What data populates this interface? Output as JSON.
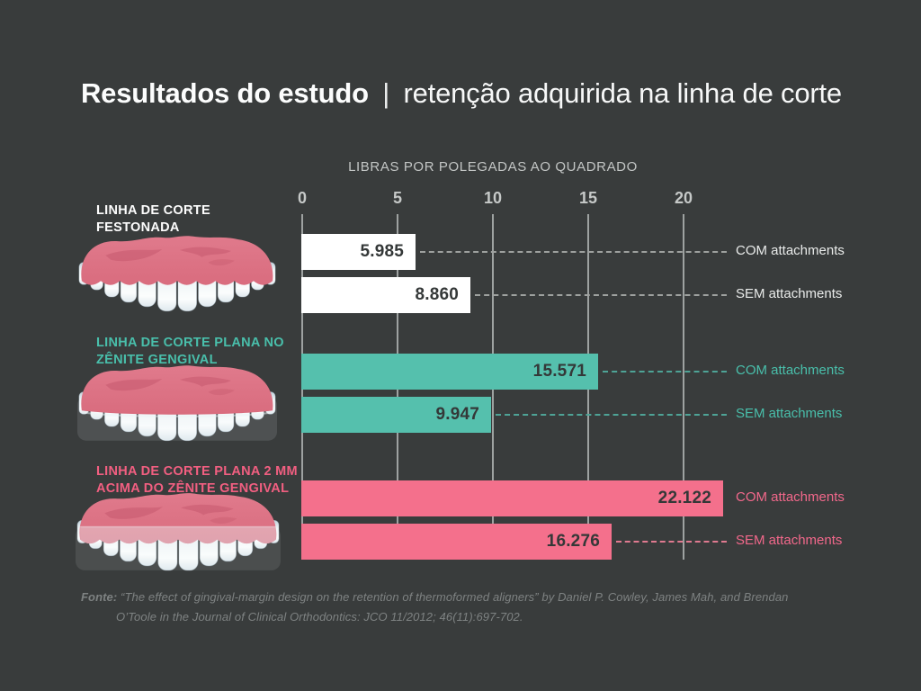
{
  "title": {
    "bold_part": "Resultados do estudo",
    "separator": "|",
    "regular_part": "retenção adquirida na linha de corte"
  },
  "chart_data": {
    "type": "bar",
    "orientation": "horizontal",
    "axis_title": "LIBRAS POR POLEGADAS AO QUADRADO",
    "x_ticks": [
      0,
      5,
      10,
      15,
      20
    ],
    "xlim": [
      0,
      22.5
    ],
    "grid": true,
    "series_labels": [
      "COM attachments",
      "SEM attachments"
    ],
    "categories": [
      "LINHA DE CORTE FESTONADA",
      "LINHA DE CORTE PLANA NO ZÊNITE GENGIVAL",
      "LINHA DE CORTE PLANA 2 MM ACIMA DO ZÊNITE GENGIVAL"
    ],
    "groups": [
      {
        "label_lines": [
          "LINHA DE CORTE",
          "FESTONADA"
        ],
        "label_color": "#FDFDFD",
        "bar_color": "#FFFFFF",
        "dash_color": "#9EA19F",
        "series_label_color": "#E9EBEA",
        "illustration": "scalloped-cutline-teeth",
        "bars": [
          {
            "series": "COM attachments",
            "value": 5.985,
            "display": "5.985"
          },
          {
            "series": "SEM attachments",
            "value": 8.86,
            "display": "8.860"
          }
        ]
      },
      {
        "label_lines": [
          "LINHA DE CORTE PLANA NO",
          "ZÊNITE GENGIVAL"
        ],
        "label_color": "#49BFAB",
        "bar_color": "#55C0AD",
        "dash_color": "#4EA396",
        "series_label_color": "#49BFAB",
        "illustration": "flat-zenith-cutline-teeth",
        "bars": [
          {
            "series": "COM attachments",
            "value": 15.571,
            "display": "15.571"
          },
          {
            "series": "SEM attachments",
            "value": 9.947,
            "display": "9.947"
          }
        ]
      },
      {
        "label_lines": [
          "LINHA DE CORTE PLANA 2 MM",
          "ACIMA DO ZÊNITE GENGIVAL"
        ],
        "label_color": "#F25F81",
        "bar_color": "#F4708C",
        "dash_color": "#E07A90",
        "series_label_color": "#F2688B",
        "illustration": "flat-2mm-above-zenith-cutline-teeth",
        "bars": [
          {
            "series": "COM attachments",
            "value": 22.122,
            "display": "22.122"
          },
          {
            "series": "SEM attachments",
            "value": 16.276,
            "display": "16.276"
          }
        ]
      }
    ]
  },
  "footer": {
    "prefix": "Fonte:",
    "line1": "“The effect of gingival-margin design on the retention of thermoformed aligners” by Daniel P. Cowley, James Mah, and Brendan",
    "line2": "O’Toole in the Journal of Clinical Orthodontics: JCO 11/2012; 46(11):697-702."
  },
  "colors": {
    "background": "#393C3C",
    "grid_line": "#9EA2A1",
    "axis_text": "#C6C9C8",
    "value_text": "#343838",
    "footer_text": "#7E8282",
    "white_series": "#FFFFFF",
    "teal_series": "#55C0AD",
    "pink_series": "#F4708C"
  }
}
